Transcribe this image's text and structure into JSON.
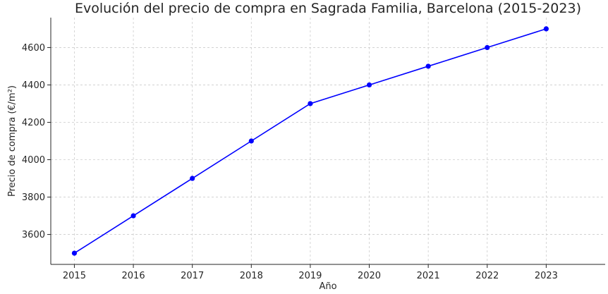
{
  "chart_data": {
    "type": "line",
    "title": "Evolución del precio de compra en Sagrada Familia, Barcelona (2015-2023)",
    "xlabel": "Año",
    "ylabel": "Precio de compra (€/m²)",
    "x": [
      2015,
      2016,
      2017,
      2018,
      2019,
      2020,
      2021,
      2022,
      2023
    ],
    "series": [
      {
        "values": [
          3500,
          3700,
          3900,
          4100,
          4300,
          4400,
          4500,
          4600,
          4700
        ],
        "color": "#0000ff"
      }
    ],
    "y_ticks": [
      3600,
      3800,
      4000,
      4200,
      4400,
      4600
    ],
    "xlim": [
      2014.6,
      2024.0
    ],
    "ylim": [
      3440,
      4760
    ],
    "grid": true,
    "marker": "circle"
  }
}
